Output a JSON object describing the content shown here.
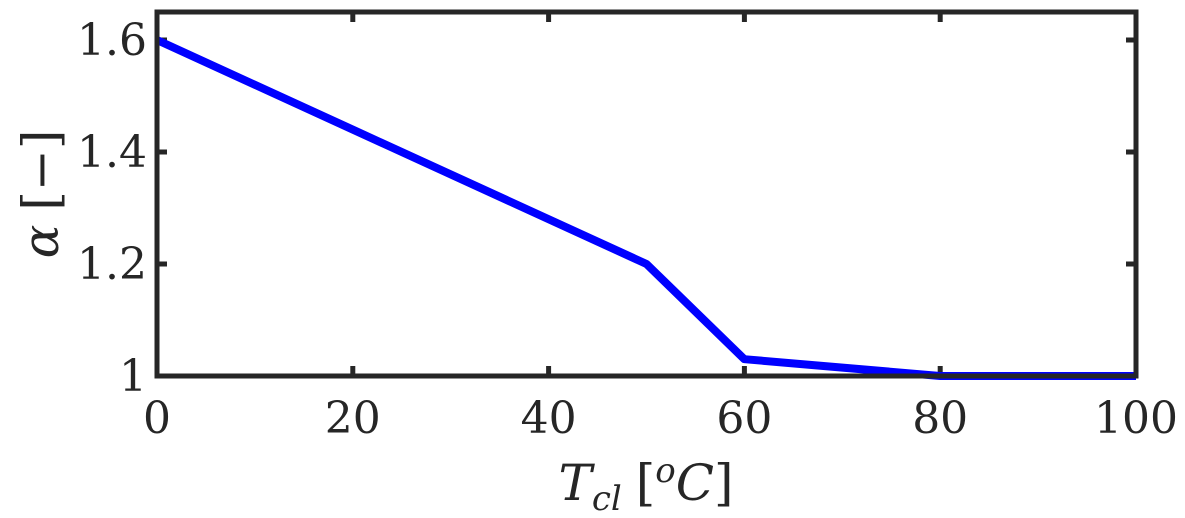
{
  "chart_data": {
    "type": "line",
    "title": "",
    "xlabel": {
      "main": "T",
      "sub": "cl",
      "open": "[",
      "sup": "o",
      "unit": "C",
      "close": "]"
    },
    "ylabel": {
      "symbol": "α",
      "unit": "[−]"
    },
    "xlim": [
      0,
      100
    ],
    "ylim": [
      1,
      1.65
    ],
    "x_ticks": [
      0,
      20,
      40,
      60,
      80,
      100
    ],
    "x_tick_labels": [
      "0",
      "20",
      "40",
      "60",
      "80",
      "100"
    ],
    "y_ticks": [
      1,
      1.2,
      1.4,
      1.6
    ],
    "y_tick_labels": [
      "1",
      "1.2",
      "1.4",
      "1.6"
    ],
    "grid": false,
    "legend": "none",
    "series": [
      {
        "color": "#0000ff",
        "x": [
          0,
          50,
          60,
          80,
          100
        ],
        "y": [
          1.6,
          1.2,
          1.03,
          1.0,
          1.0
        ]
      }
    ]
  }
}
